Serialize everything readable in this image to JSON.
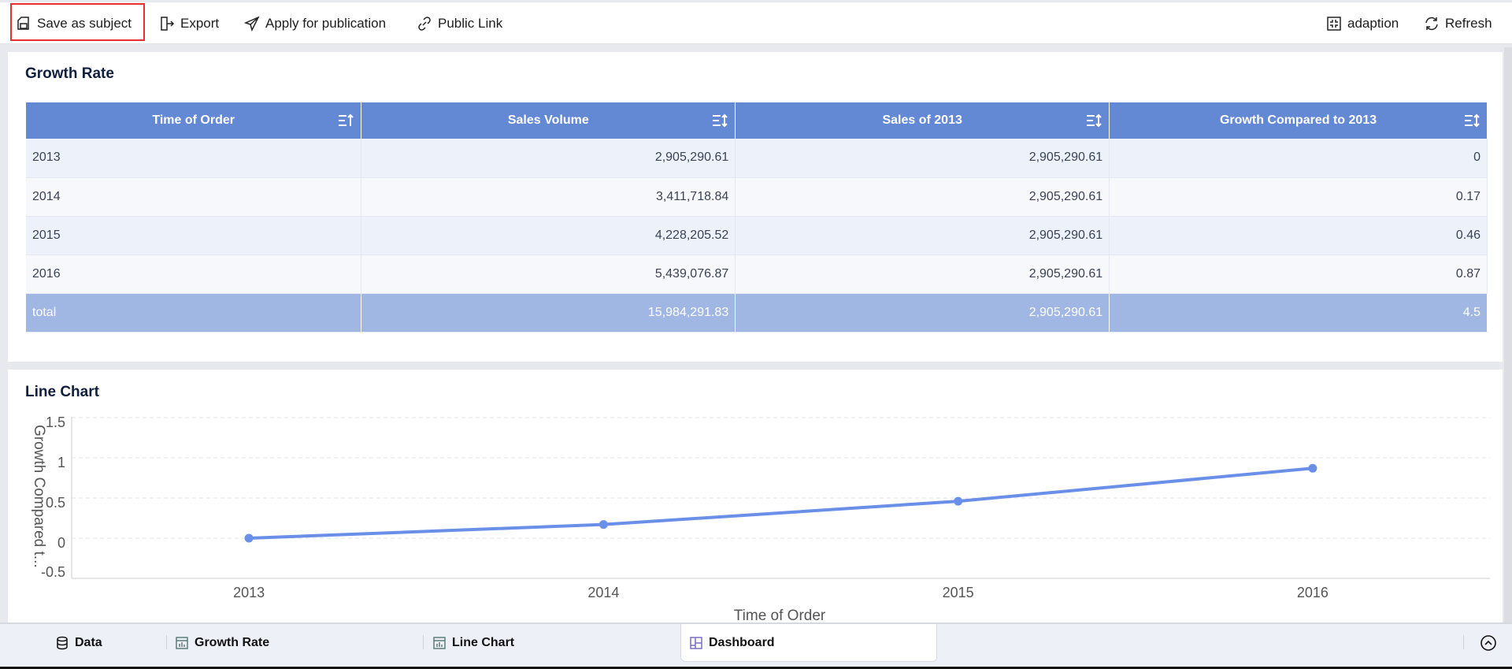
{
  "toolbar": {
    "save_as_subject": "Save as subject",
    "export": "Export",
    "apply_publication": "Apply for publication",
    "public_link": "Public Link",
    "adaption": "adaption",
    "refresh": "Refresh"
  },
  "table_panel": {
    "title": "Growth Rate",
    "columns": [
      "Time of Order",
      "Sales Volume",
      "Sales of 2013",
      "Growth Compared to 2013"
    ],
    "rows": [
      [
        "2013",
        "2,905,290.61",
        "2,905,290.61",
        "0"
      ],
      [
        "2014",
        "3,411,718.84",
        "2,905,290.61",
        "0.17"
      ],
      [
        "2015",
        "4,228,205.52",
        "2,905,290.61",
        "0.46"
      ],
      [
        "2016",
        "5,439,076.87",
        "2,905,290.61",
        "0.87"
      ]
    ],
    "total": [
      "total",
      "15,984,291.83",
      "2,905,290.61",
      "4.5"
    ]
  },
  "chart_panel": {
    "title": "Line Chart"
  },
  "chart_data": {
    "type": "line",
    "categories": [
      "2013",
      "2014",
      "2015",
      "2016"
    ],
    "values": [
      0,
      0.17,
      0.46,
      0.87
    ],
    "xlabel": "Time of Order",
    "ylabel": "Growth Compared t...",
    "ylim": [
      -0.5,
      1.5
    ],
    "yticks": [
      "1.5",
      "1",
      "0.5",
      "0",
      "-0.5"
    ],
    "grid": true,
    "color": "#6a8fe8"
  },
  "bottom_tabs": [
    {
      "label": "Data",
      "icon": "database-icon"
    },
    {
      "label": "Growth Rate",
      "icon": "table-chart-icon"
    },
    {
      "label": "Line Chart",
      "icon": "table-chart-icon"
    },
    {
      "label": "Dashboard",
      "icon": "dashboard-icon",
      "active": true
    }
  ]
}
